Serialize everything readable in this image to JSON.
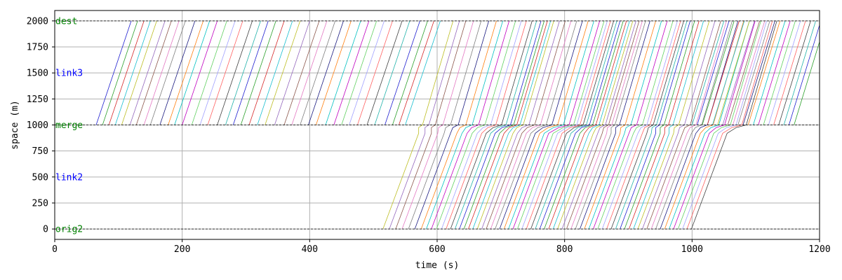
{
  "chart_data": {
    "type": "line",
    "title": "",
    "xlabel": "time (s)",
    "ylabel": "space (m)",
    "xlim": [
      0,
      1200
    ],
    "ylim": [
      -100,
      2100
    ],
    "xticks": [
      0,
      200,
      400,
      600,
      800,
      1000,
      1200
    ],
    "yticks": [
      0,
      250,
      500,
      750,
      1000,
      1250,
      1500,
      1750,
      2000
    ],
    "grid": true,
    "boundaries": [
      {
        "label": "orig2",
        "y": 0,
        "color": "#008000"
      },
      {
        "label": "merge",
        "y": 1000,
        "color": "#008000"
      },
      {
        "label": "dest",
        "y": 2000,
        "color": "#008000"
      }
    ],
    "link_labels": [
      {
        "label": "link2",
        "y": 500,
        "color": "#0000ff"
      },
      {
        "label": "link3",
        "y": 1500,
        "color": "#0000ff"
      }
    ],
    "series_note_free": true,
    "upstream_vehicles": {
      "entry_times": [
        65,
        75,
        85,
        95,
        105,
        118,
        128,
        140,
        150,
        165,
        178,
        188,
        200,
        215,
        228,
        240,
        255,
        268,
        280,
        292,
        305,
        318,
        330,
        345,
        360,
        372,
        385,
        398,
        410,
        425,
        438,
        450,
        462,
        475,
        490,
        502,
        518,
        530,
        540,
        550
      ],
      "travel_time": 55
    },
    "merged_vehicles": {
      "entry_times": [
        515,
        525,
        535,
        545,
        555,
        565,
        575,
        583,
        591,
        599,
        607,
        614,
        621,
        628,
        635,
        642,
        649,
        656,
        663,
        670,
        677,
        684,
        691,
        698,
        705,
        712,
        719,
        726,
        733,
        740,
        747,
        754,
        761,
        768,
        775,
        782,
        789,
        796,
        803,
        810,
        817,
        824,
        831,
        838,
        845,
        852,
        859,
        866,
        873,
        880,
        887,
        894,
        901,
        908,
        915,
        922,
        929,
        936,
        943,
        950,
        957,
        964,
        971,
        978,
        985,
        992,
        999
      ],
      "link2_travel_time": 62,
      "link3_travel_time": 48,
      "merge_delays": [
        0,
        0,
        0,
        2,
        4,
        6,
        8,
        10,
        12,
        14,
        15,
        16,
        18,
        18,
        18,
        16,
        14,
        12,
        10,
        12,
        14,
        16,
        18,
        20,
        22,
        24,
        26,
        26,
        24,
        22,
        20,
        18,
        16,
        14,
        12,
        10,
        8,
        6,
        4,
        2,
        0,
        0,
        2,
        4,
        6,
        8,
        8,
        6,
        4,
        2,
        0,
        0,
        0,
        0,
        2,
        4,
        6,
        8,
        10,
        12,
        14,
        16,
        18,
        20,
        22,
        24,
        24
      ]
    },
    "extra_upstream_late": {
      "entry_times": [
        1000,
        1008,
        1016,
        1024,
        1032,
        1040,
        1048,
        1056,
        1064,
        1072,
        1080,
        1088,
        1096,
        1104,
        1112,
        1120,
        1128,
        1136,
        1144,
        1152,
        1160
      ],
      "travel_time": 50
    },
    "colors": [
      "#1f1fd0",
      "#2ca02c",
      "#d62728",
      "#17becf",
      "#bcbd22",
      "#9467bd",
      "#8c564b",
      "#e377c2",
      "#7f7f7f",
      "#1a1a80",
      "#ff7f0e",
      "#00c0c0",
      "#c000c0",
      "#60d060",
      "#a0a0ff",
      "#ff6060",
      "#404040",
      "#20b2aa"
    ]
  }
}
